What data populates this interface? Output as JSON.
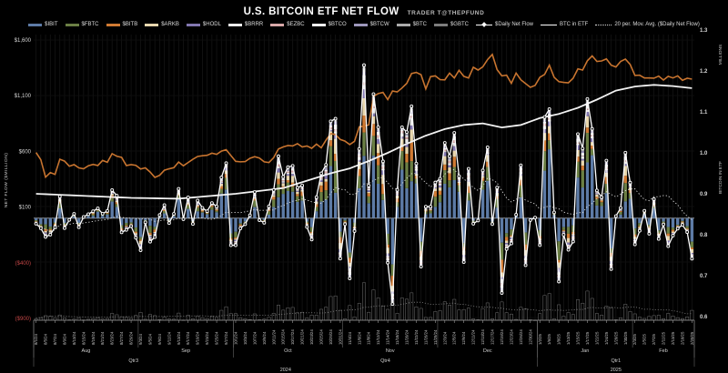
{
  "header": {
    "title": "U.S. BITCOIN ETF NET FLOW",
    "credit": "TRADER T@THEPFUND"
  },
  "legend": {
    "bars": [
      {
        "label": "$IBIT",
        "color": "#5d7ba6"
      },
      {
        "label": "$FBTC",
        "color": "#6b7f44"
      },
      {
        "label": "$BITB",
        "color": "#d07a33"
      },
      {
        "label": "$ARKB",
        "color": "#e8d7ae"
      },
      {
        "label": "$HODL",
        "color": "#8277b0"
      },
      {
        "label": "$BRRR",
        "color": "#ececec"
      },
      {
        "label": "$EZBC",
        "color": "#d8a8a8"
      },
      {
        "label": "$BTCO",
        "color": "#f2f2f2"
      },
      {
        "label": "$BTCW",
        "color": "#9d97bb"
      },
      {
        "label": "$BTC",
        "color": "#ababab"
      },
      {
        "label": "$GBTC",
        "color": "#7d7d7d"
      }
    ],
    "lines": [
      {
        "label": "$Daily Net Flow",
        "type": "marker-line",
        "color": "#ffffff"
      },
      {
        "label": "BTC in ETF",
        "type": "line",
        "color": "#ffffff"
      },
      {
        "label": "20 per. Mov. Avg. ($Daily Net Flow)",
        "type": "dotted",
        "color": "#dddddd"
      }
    ]
  },
  "axes": {
    "left": {
      "title": "NET FLOW ($MILLION)",
      "ticks": [
        "$1,600",
        "$1,100",
        "$600",
        "$100",
        "($400)",
        "($900)"
      ],
      "tick_values": [
        1600,
        1100,
        600,
        100,
        -400,
        -900
      ],
      "negative_color": "#c04545",
      "tick_color": "#d6d6d6"
    },
    "right": {
      "title": "BITCOIN IN ETF",
      "unit": "MILLIONS",
      "ticks": [
        "1.3",
        "1.2",
        "1.1",
        "1.0",
        "0.9",
        "0.8",
        "0.7",
        "0.6"
      ],
      "range": [
        0.6,
        1.3
      ]
    }
  },
  "chart_data": {
    "type": "composite",
    "title": "U.S. BITCOIN ETF NET FLOW",
    "left_axis_range": [
      -900,
      1600
    ],
    "right_axis_range": [
      0.6,
      1.3
    ],
    "dates": [
      "8/1/24",
      "8/2/24",
      "8/5/24",
      "8/6/24",
      "8/7/24",
      "8/8/24",
      "8/9/24",
      "8/12/24",
      "8/13/24",
      "8/14/24",
      "8/15/24",
      "8/16/24",
      "8/19/24",
      "8/20/24",
      "8/21/24",
      "8/22/24",
      "8/23/24",
      "8/26/24",
      "8/27/24",
      "8/28/24",
      "8/29/24",
      "8/30/24",
      "9/3/24",
      "9/4/24",
      "9/5/24",
      "9/6/24",
      "9/9/24",
      "9/10/24",
      "9/11/24",
      "9/12/24",
      "9/13/24",
      "9/16/24",
      "9/17/24",
      "9/18/24",
      "9/19/24",
      "9/20/24",
      "9/23/24",
      "9/24/24",
      "9/25/24",
      "9/26/24",
      "9/27/24",
      "9/30/24",
      "10/1/24",
      "10/2/24",
      "10/3/24",
      "10/4/24",
      "10/7/24",
      "10/8/24",
      "10/9/24",
      "10/10/24",
      "10/11/24",
      "10/14/24",
      "10/15/24",
      "10/16/24",
      "10/17/24",
      "10/18/24",
      "10/21/24",
      "10/22/24",
      "10/23/24",
      "10/24/24",
      "10/25/24",
      "10/28/24",
      "10/29/24",
      "10/30/24",
      "10/31/24",
      "11/1/24",
      "11/4/24",
      "11/5/24",
      "11/6/24",
      "11/7/24",
      "11/8/24",
      "11/11/24",
      "11/12/24",
      "11/13/24",
      "11/14/24",
      "11/15/24",
      "11/18/24",
      "11/19/24",
      "11/20/24",
      "11/21/24",
      "11/22/24",
      "11/25/24",
      "11/26/24",
      "11/27/24",
      "11/29/24",
      "12/2/24",
      "12/3/24",
      "12/4/24",
      "12/5/24",
      "12/6/24",
      "12/9/24",
      "12/10/24",
      "12/11/24",
      "12/12/24",
      "12/13/24",
      "12/16/24",
      "12/17/24",
      "12/18/24",
      "12/19/24",
      "12/20/24",
      "12/23/24",
      "12/24/24",
      "12/26/24",
      "12/27/24",
      "12/30/24",
      "12/31/24",
      "1/2/25",
      "1/3/25",
      "1/6/25",
      "1/7/25",
      "1/8/25",
      "1/10/25",
      "1/13/25",
      "1/14/25",
      "1/15/25",
      "1/16/25",
      "1/17/25",
      "1/21/25",
      "1/22/25",
      "1/23/25",
      "1/24/25",
      "1/27/25",
      "1/28/25",
      "1/29/25",
      "1/30/25",
      "1/31/25",
      "2/3/25",
      "2/4/25",
      "2/5/25",
      "2/6/25",
      "2/7/25",
      "2/10/25",
      "2/11/25",
      "2/12/25",
      "2/13/25",
      "2/14/25",
      "2/18/25",
      "2/19/25",
      "2/20/25"
    ],
    "daily_net_flow_musd": [
      -50,
      -90,
      -168,
      -148,
      -81,
      194,
      -89,
      -15,
      39,
      -81,
      11,
      36,
      62,
      88,
      40,
      65,
      252,
      202,
      -127,
      -105,
      -71,
      -176,
      -288,
      -37,
      -211,
      -170,
      28,
      117,
      -44,
      39,
      263,
      -9,
      187,
      -52,
      158,
      92,
      62,
      136,
      106,
      365,
      494,
      -243,
      -243,
      -92,
      -54,
      26,
      235,
      -18,
      -41,
      106,
      253,
      556,
      371,
      458,
      470,
      273,
      294,
      -79,
      -192,
      188,
      402,
      479,
      870,
      893,
      -363,
      -54,
      -541,
      -116,
      622,
      1374,
      293,
      1114,
      817,
      510,
      -400,
      -771,
      254,
      816,
      773,
      1005,
      490,
      -435,
      103,
      103,
      320,
      354,
      676,
      557,
      766,
      377,
      -394,
      443,
      -50,
      -21,
      429,
      636,
      -53,
      275,
      -672,
      -277,
      -227,
      31,
      475,
      -422,
      -17,
      5,
      -242,
      908,
      979,
      52,
      -569,
      -149,
      -284,
      -210,
      755,
      626,
      1070,
      802,
      249,
      188,
      517,
      -457,
      18,
      92,
      588,
      319,
      -235,
      -113,
      66,
      -140,
      171,
      -186,
      -56,
      -251,
      -157,
      -94,
      -60,
      -125,
      -364
    ],
    "orange_line_btc_price_usd_k": [
      64.6,
      61.5,
      54.0,
      56.0,
      55.2,
      61.7,
      60.9,
      58.7,
      59.4,
      58.0,
      57.6,
      58.9,
      59.5,
      59.0,
      61.2,
      60.4,
      64.1,
      63.0,
      62.5,
      59.0,
      59.4,
      59.1,
      57.5,
      58.0,
      56.2,
      53.9,
      54.8,
      57.0,
      57.6,
      58.1,
      60.5,
      58.9,
      60.3,
      61.7,
      62.9,
      63.2,
      63.4,
      64.3,
      63.8,
      65.2,
      65.8,
      63.3,
      60.8,
      60.6,
      60.7,
      62.1,
      62.8,
      62.2,
      60.6,
      60.3,
      62.4,
      66.1,
      67.0,
      67.6,
      67.4,
      68.4,
      67.0,
      67.4,
      66.4,
      68.2,
      66.6,
      69.9,
      72.7,
      72.3,
      70.2,
      69.5,
      68.0,
      69.4,
      75.6,
      75.9,
      76.5,
      88.7,
      89.9,
      90.4,
      87.3,
      91.0,
      90.6,
      92.3,
      94.3,
      98.5,
      99.0,
      98.0,
      91.9,
      97.2,
      97.5,
      95.9,
      95.8,
      98.7,
      96.6,
      99.9,
      97.3,
      96.6,
      101.2,
      100.0,
      101.4,
      104.5,
      106.7,
      100.2,
      97.5,
      97.8,
      94.3,
      98.7,
      95.8,
      94.2,
      92.6,
      93.4,
      96.9,
      98.1,
      102.1,
      96.9,
      95.0,
      94.7,
      94.5,
      96.5,
      100.5,
      100.0,
      104.0,
      106.1,
      103.7,
      103.9,
      104.8,
      102.1,
      101.3,
      103.7,
      104.7,
      102.4,
      97.7,
      97.8,
      96.6,
      96.6,
      96.5,
      97.4,
      95.7,
      97.3,
      96.6,
      97.5,
      95.6,
      96.5,
      96.1
    ],
    "btc_in_etf_waypoints": [
      [
        0,
        0.9
      ],
      [
        8,
        0.896
      ],
      [
        20,
        0.89
      ],
      [
        30,
        0.888
      ],
      [
        42,
        0.9
      ],
      [
        52,
        0.914
      ],
      [
        62,
        0.95
      ],
      [
        66,
        0.962
      ],
      [
        70,
        0.98
      ],
      [
        74,
        1.0
      ],
      [
        78,
        1.022
      ],
      [
        82,
        1.042
      ],
      [
        86,
        1.058
      ],
      [
        90,
        1.068
      ],
      [
        94,
        1.072
      ],
      [
        98,
        1.062
      ],
      [
        102,
        1.068
      ],
      [
        106,
        1.085
      ],
      [
        110,
        1.095
      ],
      [
        114,
        1.11
      ],
      [
        118,
        1.13
      ],
      [
        122,
        1.152
      ],
      [
        126,
        1.162
      ],
      [
        130,
        1.166
      ],
      [
        134,
        1.163
      ],
      [
        138,
        1.158
      ]
    ],
    "moving_average": {
      "label": "20 per. Mov. Avg. ($Daily Net Flow)",
      "window": 20
    },
    "stack_order": [
      "$IBIT",
      "$FBTC",
      "$BITB",
      "$ARKB",
      "$HODL",
      "$BRRR",
      "$EZBC",
      "$BTCO",
      "$BTCW",
      "$BTC",
      "$GBTC"
    ],
    "stack_weights": [
      0.5,
      0.17,
      0.08,
      0.08,
      0.04,
      0.03,
      0.02,
      0.03,
      0.02,
      0.015,
      0.015
    ],
    "months": [
      {
        "label": "Aug",
        "start": 0,
        "count": 22
      },
      {
        "label": "Sep",
        "start": 22,
        "count": 20
      },
      {
        "label": "Oct",
        "start": 42,
        "count": 23
      },
      {
        "label": "Nov",
        "start": 65,
        "count": 20
      },
      {
        "label": "Dec",
        "start": 85,
        "count": 21
      },
      {
        "label": "Jan",
        "start": 106,
        "count": 20
      },
      {
        "label": "Feb",
        "start": 126,
        "count": 13
      }
    ],
    "quarters": [
      {
        "label": "Qtr3",
        "start": 0,
        "count": 42
      },
      {
        "label": "Qtr4",
        "start": 42,
        "count": 64
      },
      {
        "label": "Qtr1",
        "start": 106,
        "count": 33
      }
    ],
    "years": [
      {
        "label": "2024",
        "start": 0,
        "count": 106
      },
      {
        "label": "2025",
        "start": 106,
        "count": 33
      }
    ],
    "colors": {
      "background": "#000000",
      "orange_line": "#c8742f",
      "btc_in_etf_line": "#f2f2f2",
      "daily_net_flow_line": "#ffffff",
      "moving_average_line": "#d8d8d8",
      "zero_line": "#b0b0b0",
      "gridline": "#151515",
      "volume_bar_outline": "#6e6e6e"
    }
  }
}
